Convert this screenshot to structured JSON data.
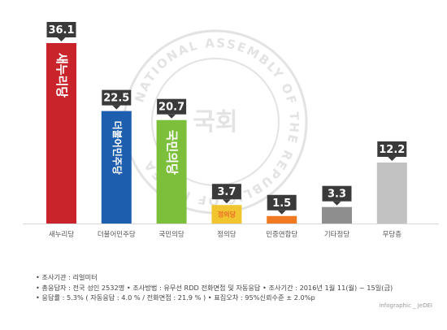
{
  "chart_data": {
    "type": "bar",
    "categories": [
      "새누리당",
      "더불어민주당",
      "국민의당",
      "정의당",
      "민중연합당",
      "기타정당",
      "무당층"
    ],
    "values": [
      36.1,
      22.5,
      20.7,
      3.7,
      1.5,
      3.3,
      12.2
    ],
    "value_labels": [
      "36.1",
      "22.5",
      "20.7",
      "3.7",
      "1.5",
      "3.3",
      "12.2"
    ],
    "bar_colors": [
      "#c9242b",
      "#1d5fae",
      "#7cbf3a",
      "#f1c52f",
      "#f07a21",
      "#8e8e8e",
      "#c2c2c2"
    ],
    "logo_texts": [
      "새누리당",
      "더불어민주당",
      "국민의당",
      "정의당"
    ],
    "logo_text_colors": [
      "#ffffff",
      "#ffffff",
      "#ffffff",
      "#ee6d2a"
    ],
    "ylim": [
      0,
      40
    ],
    "title": "",
    "xlabel": "",
    "ylabel": "",
    "grid": false,
    "legend": "none"
  },
  "watermark": {
    "ring_text": "NATIONAL ASSEMBLY OF THE REPUBLIC OF KOREA",
    "center_text": "국회"
  },
  "footnotes": [
    "• 조사기관 : 리얼미터",
    "• 총응답자 : 전국 성인 2532명  • 조사방법 : 유무선 RDD 전화면접 및 자동응답  • 조사기간 : 2016년 1월 11(월) ~ 15일(금)",
    "• 응답률 : 5.3% ( 자동응답 : 4.0 % / 전화면접 : 21.9 % )  • 표집오차 : 95%신뢰수준 ± 2.0%p"
  ],
  "credit": "infographic _ JeDEI",
  "colors": {
    "label_box": "#3a3a3a",
    "axis_line": "#d9d9d9"
  }
}
